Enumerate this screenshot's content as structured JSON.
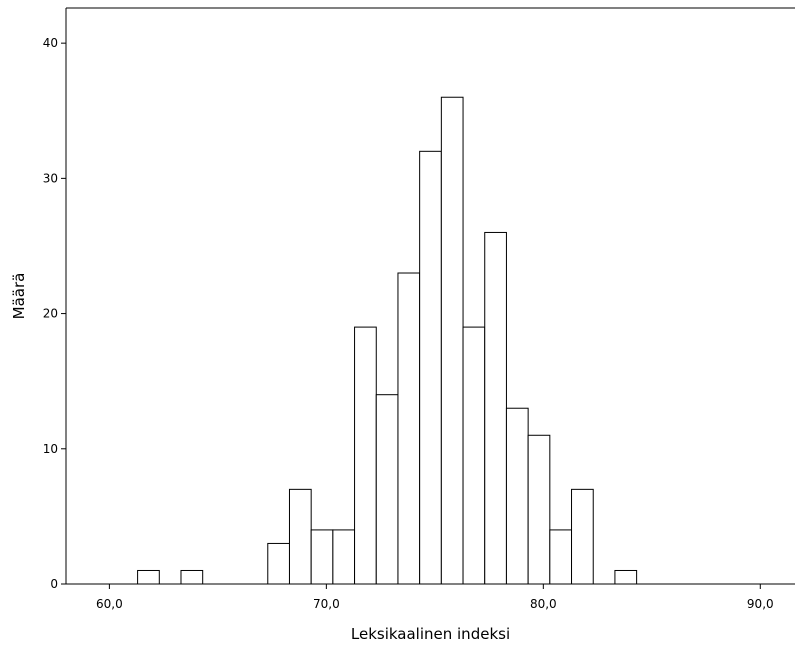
{
  "chart_data": {
    "type": "bar",
    "subtype": "histogram",
    "xlabel": "Leksikaalinen indeksi",
    "ylabel": "Määrä",
    "xlim": [
      58.0,
      91.6
    ],
    "ylim": [
      0,
      42.6
    ],
    "x_ticks": [
      60,
      70,
      80,
      90
    ],
    "x_tick_labels": [
      "60,0",
      "70,0",
      "80,0",
      "90,0"
    ],
    "y_ticks": [
      0,
      10,
      20,
      30,
      40
    ],
    "y_tick_labels": [
      "0",
      "10",
      "20",
      "30",
      "40"
    ],
    "bin_width": 1.0,
    "bins": [
      {
        "start": 61.3,
        "count": 1
      },
      {
        "start": 63.3,
        "count": 1
      },
      {
        "start": 67.3,
        "count": 3
      },
      {
        "start": 68.3,
        "count": 7
      },
      {
        "start": 69.3,
        "count": 4
      },
      {
        "start": 70.3,
        "count": 4
      },
      {
        "start": 71.3,
        "count": 19
      },
      {
        "start": 72.3,
        "count": 14
      },
      {
        "start": 73.3,
        "count": 23
      },
      {
        "start": 74.3,
        "count": 32
      },
      {
        "start": 75.3,
        "count": 36
      },
      {
        "start": 76.3,
        "count": 19
      },
      {
        "start": 77.3,
        "count": 26
      },
      {
        "start": 78.3,
        "count": 13
      },
      {
        "start": 79.3,
        "count": 11
      },
      {
        "start": 80.3,
        "count": 4
      },
      {
        "start": 81.3,
        "count": 7
      },
      {
        "start": 83.3,
        "count": 1
      }
    ],
    "fill_color": "#ffffff",
    "stroke_color": "#000000",
    "grid": false,
    "legend": "none"
  }
}
